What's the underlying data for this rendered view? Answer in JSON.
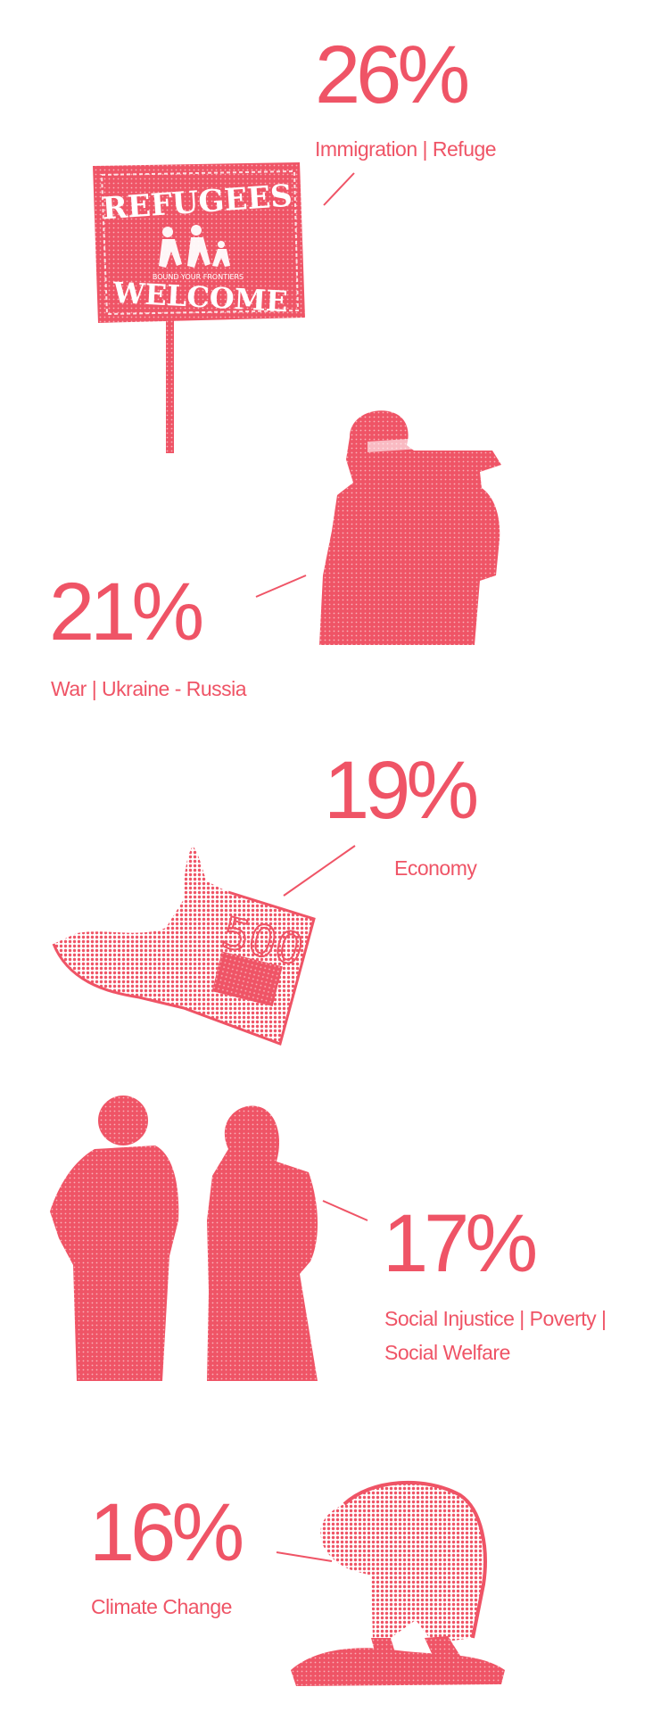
{
  "accent_color": "#ef5466",
  "stats": [
    {
      "percent": "26%",
      "label": "Immigration | Refuge",
      "icon": "refugees-welcome-sign"
    },
    {
      "percent": "21%",
      "label": "War | Ukraine - Russia",
      "icon": "soldier-with-launcher"
    },
    {
      "percent": "19%",
      "label": "Economy",
      "icon": "500-euro-banknote"
    },
    {
      "percent": "17%",
      "label_lines": [
        "Social Injustice | Poverty |",
        "Social Welfare"
      ],
      "icon": "two-people-backs-turned"
    },
    {
      "percent": "16%",
      "label": "Climate Change",
      "icon": "polar-bear-on-ice"
    }
  ],
  "sign": {
    "top_text": "REFUGEES",
    "small_text": "BOUND YOUR FRONTIERS",
    "bottom_text": "WELCOME"
  },
  "banknote": {
    "value": "500"
  }
}
